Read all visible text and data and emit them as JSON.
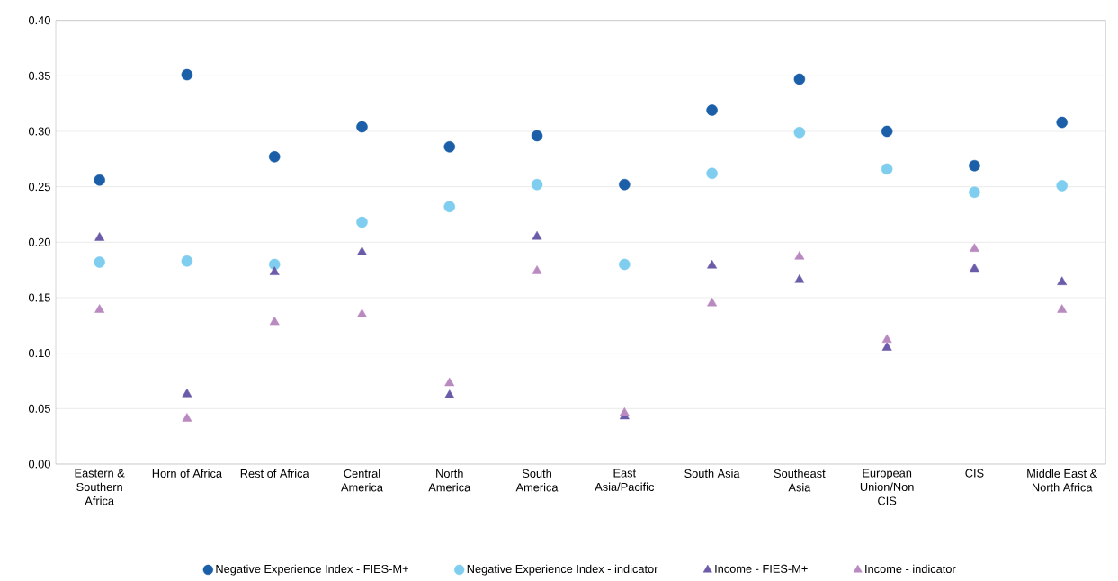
{
  "chart_data": {
    "type": "scatter",
    "categories": [
      "Eastern & Southern Africa",
      "Horn of Africa",
      "Rest of Africa",
      "Central America",
      "North America",
      "South America",
      "East Asia/Pacific",
      "South Asia",
      "Southeast Asia",
      "European Union/Non CIS",
      "CIS",
      "Middle East & North Africa"
    ],
    "series": [
      {
        "name": "Negative Experience Index - FIES-M+",
        "color": "#1a5fa8",
        "marker": "circle",
        "values": [
          0.256,
          0.351,
          0.277,
          0.304,
          0.286,
          0.296,
          0.252,
          0.319,
          0.347,
          0.3,
          0.269,
          0.308
        ]
      },
      {
        "name": "Negative Experience Index - indicator",
        "color": "#7fcdef",
        "marker": "circle",
        "values": [
          0.182,
          0.183,
          0.18,
          0.218,
          0.232,
          0.252,
          0.18,
          0.262,
          0.299,
          0.266,
          0.245,
          0.251
        ]
      },
      {
        "name": "Income - FIES-M+",
        "color": "#6b5ba8",
        "marker": "triangle",
        "values": [
          0.204,
          0.063,
          0.173,
          0.191,
          0.062,
          0.205,
          0.043,
          0.179,
          0.166,
          0.105,
          0.176,
          0.164
        ]
      },
      {
        "name": "Income - indicator",
        "color": "#b98ac0",
        "marker": "triangle",
        "values": [
          0.139,
          0.041,
          0.128,
          0.135,
          0.073,
          0.174,
          0.046,
          0.145,
          0.187,
          0.112,
          0.194,
          0.139
        ]
      }
    ],
    "ylim": [
      0,
      0.4
    ],
    "yticks": [
      {
        "value": 0,
        "label": "0.00"
      },
      {
        "value": 0.05,
        "label": "0.05"
      },
      {
        "value": 0.1,
        "label": "0.10"
      },
      {
        "value": 0.15,
        "label": "0.15"
      },
      {
        "value": 0.2,
        "label": "0.20"
      },
      {
        "value": 0.25,
        "label": "0.25"
      },
      {
        "value": 0.3,
        "label": "0.30"
      },
      {
        "value": 0.35,
        "label": "0.35"
      },
      {
        "value": 0.4,
        "label": "0.40"
      }
    ],
    "grid": "y",
    "legend": "bottom"
  }
}
